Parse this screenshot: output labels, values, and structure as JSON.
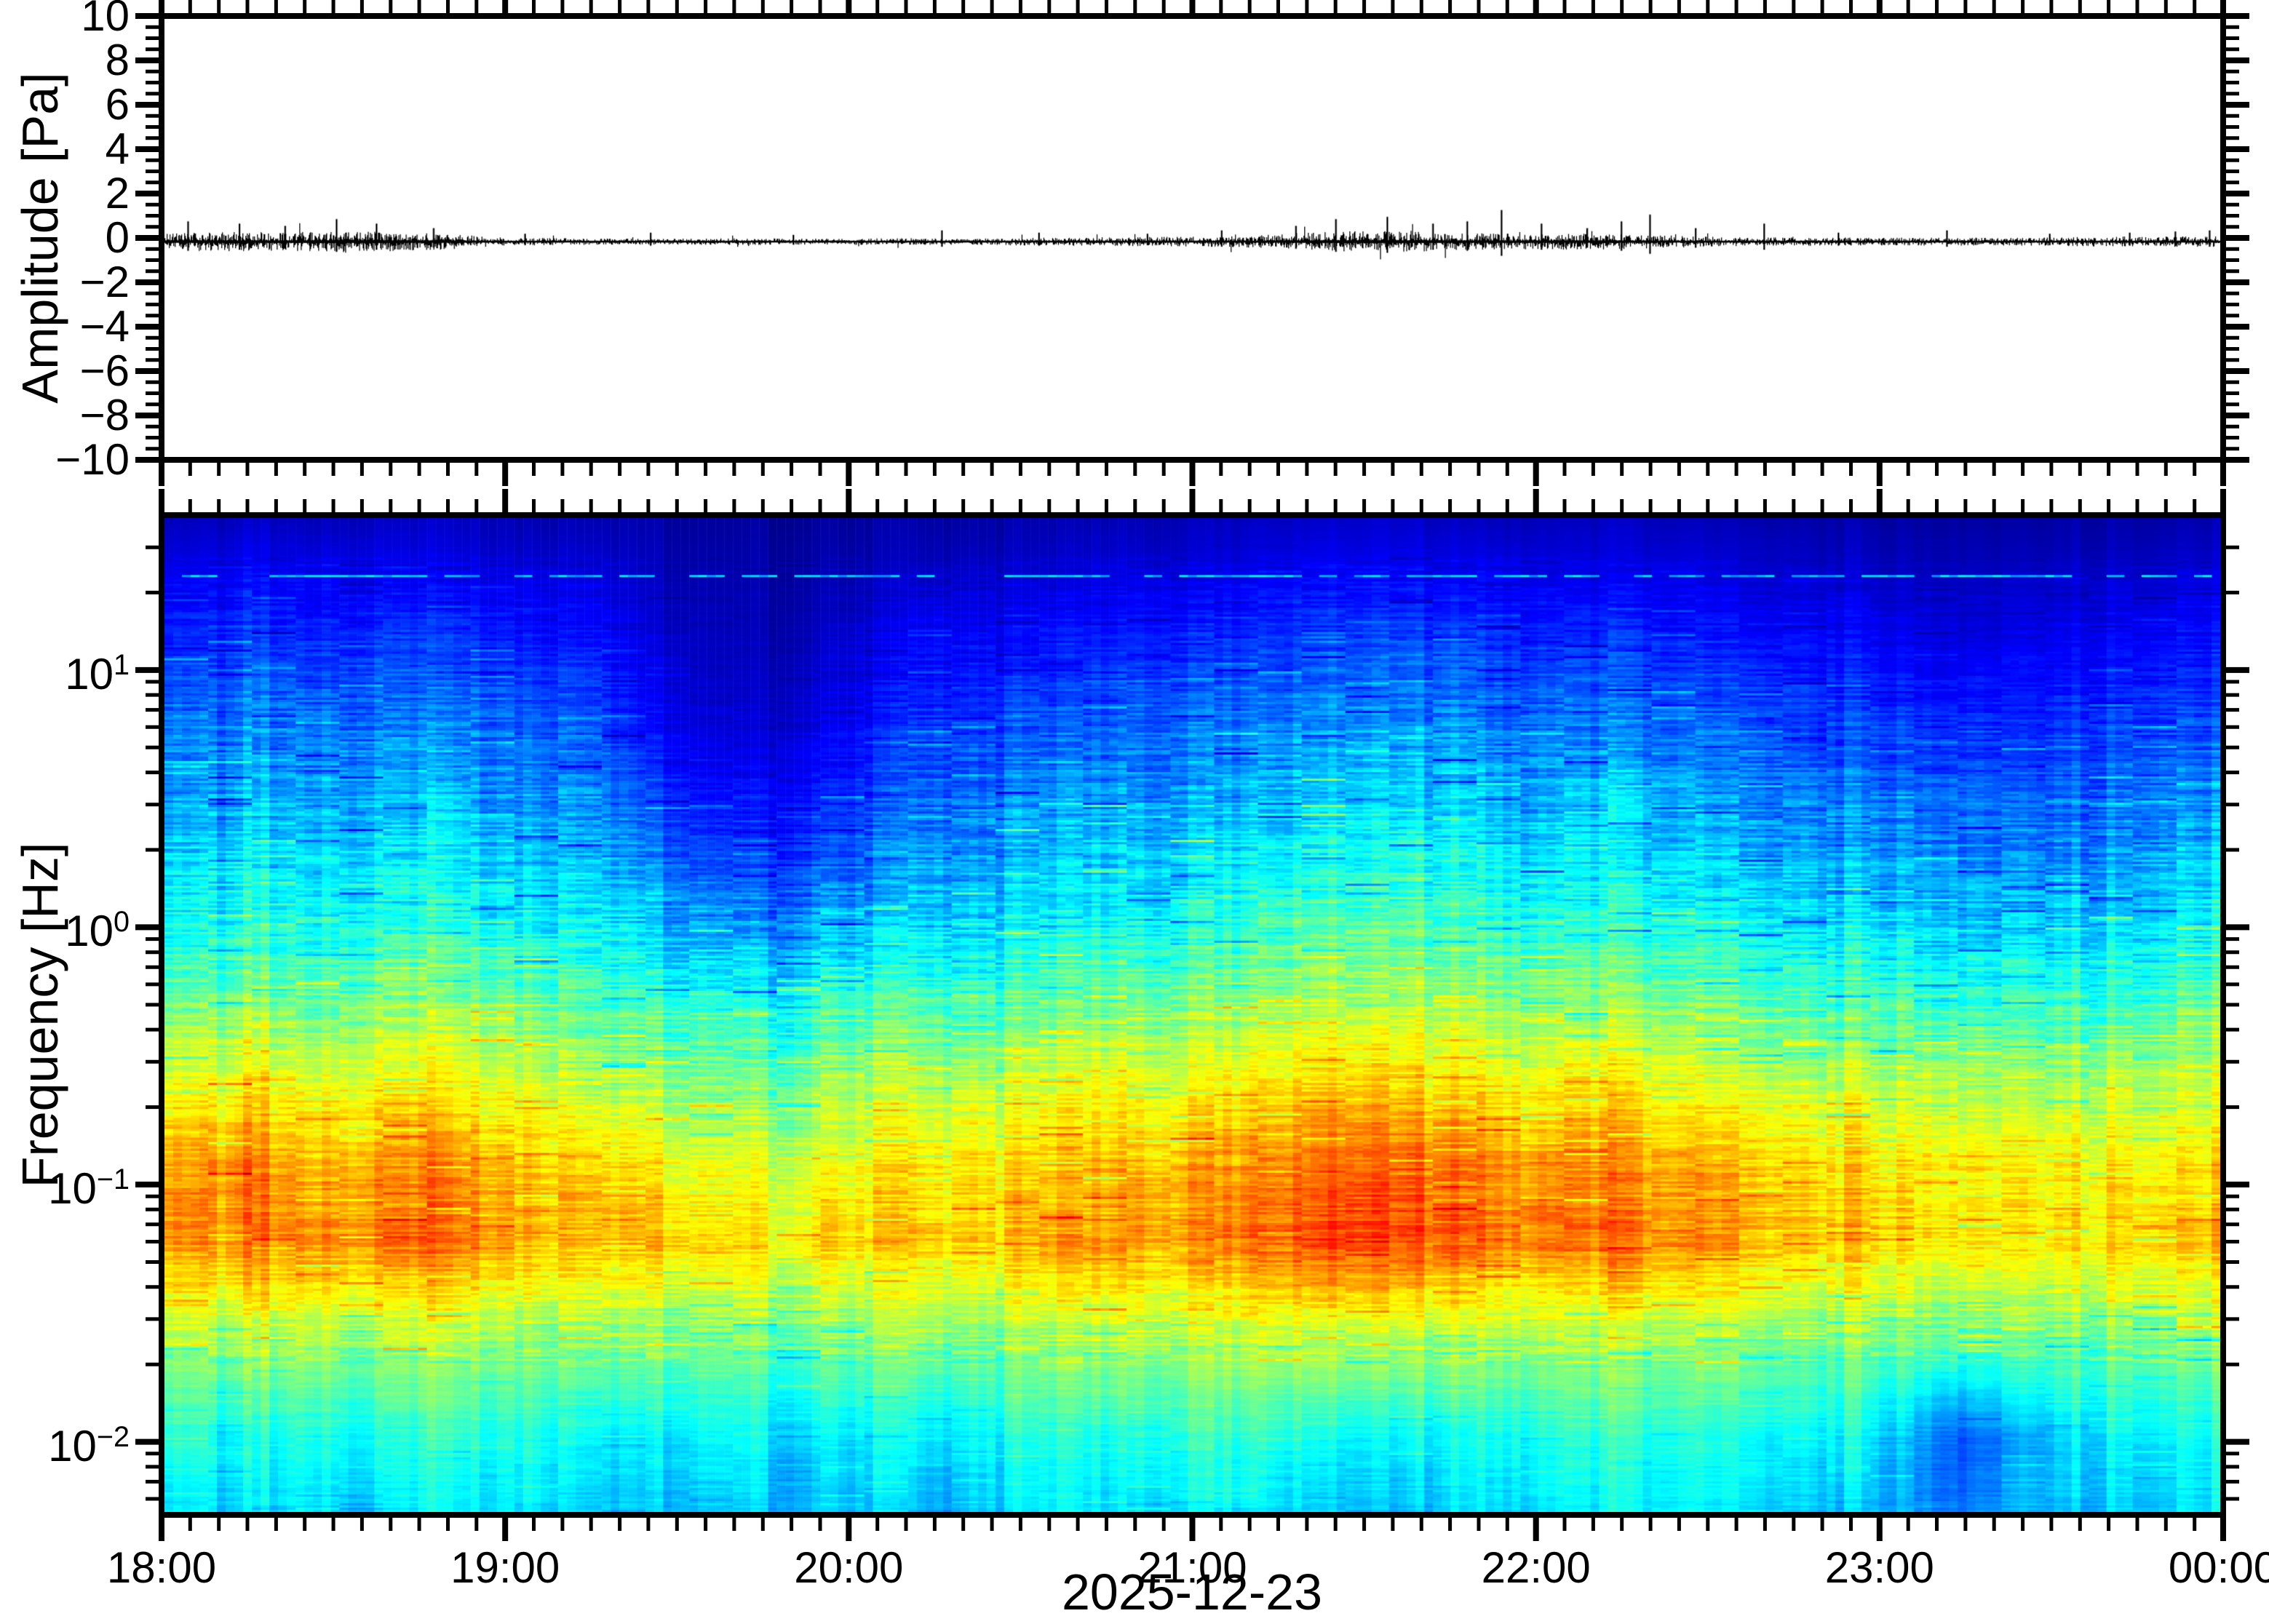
{
  "figure": {
    "background": "#ffffff",
    "x_axis": {
      "tick_labels": [
        "18:00",
        "19:00",
        "20:00",
        "21:00",
        "22:00",
        "23:00",
        "00:00"
      ],
      "minor_tick_minutes": 5,
      "start_minute": 0,
      "end_minute": 360,
      "date_label": "2025-12-23"
    },
    "waveform_panel": {
      "ylabel": "Amplitude [Pa]",
      "ymin": -10,
      "ymax": 10,
      "ytick_values": [
        10,
        8,
        6,
        4,
        2,
        0,
        -2,
        -4,
        -6,
        -8,
        -10
      ],
      "ytick_labels": [
        "10",
        "8",
        "6",
        "4",
        "2",
        "0",
        "−2",
        "−4",
        "−6",
        "−8",
        "−10"
      ],
      "minor_tick_step": 0.5,
      "trace_color": "#000000"
    },
    "spectrogram_panel": {
      "ylabel": "Frequency [Hz]",
      "fmax_hz": 40,
      "fmin_hz": 0.0052,
      "decade_tick_base": "10",
      "decade_tick_exponents": [
        1,
        0,
        -1,
        -2
      ]
    }
  },
  "chart_data": [
    {
      "type": "line",
      "name": "infrasound-waveform",
      "xlabel_unit": "minutes after 18:00",
      "ylabel": "Amplitude [Pa]",
      "ylim": [
        -10,
        10
      ],
      "baseline_pa": 0,
      "envelope_x_step_minutes": 10,
      "envelope_pa": [
        0.22,
        0.26,
        0.24,
        0.28,
        0.25,
        0.2,
        0.1,
        0.09,
        0.08,
        0.08,
        0.09,
        0.08,
        0.08,
        0.09,
        0.08,
        0.1,
        0.11,
        0.12,
        0.13,
        0.16,
        0.24,
        0.28,
        0.26,
        0.22,
        0.2,
        0.22,
        0.18,
        0.13,
        0.11,
        0.11,
        0.1,
        0.11,
        0.1,
        0.11,
        0.13,
        0.14,
        0.15
      ],
      "spikes_minute_pa": [
        [
          4,
          0.9
        ],
        [
          13,
          0.8
        ],
        [
          21,
          0.7
        ],
        [
          30,
          1.0
        ],
        [
          37,
          0.8
        ],
        [
          47,
          0.6
        ],
        [
          63,
          0.35
        ],
        [
          85,
          0.4
        ],
        [
          110,
          0.3
        ],
        [
          136,
          0.5
        ],
        [
          153,
          0.4
        ],
        [
          172,
          0.35
        ],
        [
          185,
          0.5
        ],
        [
          198,
          0.7
        ],
        [
          205,
          1.0
        ],
        [
          214,
          1.1
        ],
        [
          222,
          0.8
        ],
        [
          228,
          0.9
        ],
        [
          234,
          1.4
        ],
        [
          241,
          0.8
        ],
        [
          249,
          0.6
        ],
        [
          255,
          0.9
        ],
        [
          260,
          1.2
        ],
        [
          268,
          0.6
        ],
        [
          280,
          0.8
        ],
        [
          293,
          0.4
        ],
        [
          312,
          0.5
        ],
        [
          330,
          0.35
        ],
        [
          344,
          0.4
        ],
        [
          352,
          0.45
        ],
        [
          358,
          0.5
        ]
      ]
    },
    {
      "type": "heatmap",
      "name": "spectrogram-normalized-power",
      "value_scale": "normalized 0 (low, navy) to 1 (high, red), jet colormap",
      "time_minutes": [
        5,
        15,
        25,
        35,
        45,
        55,
        65,
        75,
        85,
        95,
        105,
        115,
        125,
        135,
        145,
        155,
        165,
        175,
        185,
        195,
        205,
        215,
        225,
        235,
        245,
        255,
        265,
        275,
        285,
        295,
        305,
        315,
        325,
        335,
        345,
        355
      ],
      "frequencies_hz": [
        50,
        30,
        15,
        8,
        4,
        2,
        1,
        0.5,
        0.25,
        0.12,
        0.06,
        0.025,
        0.01,
        0.005
      ],
      "light_line_hz": 24,
      "power": [
        [
          0.04,
          0.09,
          0.16,
          0.22,
          0.28,
          0.34,
          0.4,
          0.5,
          0.62,
          0.72,
          0.74,
          0.55,
          0.42,
          0.36
        ],
        [
          0.04,
          0.1,
          0.17,
          0.23,
          0.29,
          0.35,
          0.41,
          0.51,
          0.63,
          0.74,
          0.76,
          0.54,
          0.38,
          0.33
        ],
        [
          0.04,
          0.09,
          0.16,
          0.22,
          0.28,
          0.34,
          0.41,
          0.5,
          0.61,
          0.71,
          0.75,
          0.56,
          0.42,
          0.37
        ],
        [
          0.04,
          0.1,
          0.17,
          0.23,
          0.3,
          0.36,
          0.42,
          0.52,
          0.63,
          0.73,
          0.77,
          0.55,
          0.4,
          0.34
        ],
        [
          0.04,
          0.09,
          0.16,
          0.22,
          0.29,
          0.35,
          0.41,
          0.51,
          0.62,
          0.74,
          0.76,
          0.54,
          0.41,
          0.35
        ],
        [
          0.04,
          0.08,
          0.15,
          0.21,
          0.27,
          0.33,
          0.4,
          0.49,
          0.6,
          0.7,
          0.73,
          0.53,
          0.4,
          0.34
        ],
        [
          0.03,
          0.07,
          0.13,
          0.19,
          0.25,
          0.31,
          0.38,
          0.48,
          0.58,
          0.67,
          0.7,
          0.52,
          0.4,
          0.35
        ],
        [
          0.03,
          0.07,
          0.13,
          0.18,
          0.24,
          0.3,
          0.37,
          0.44,
          0.54,
          0.66,
          0.69,
          0.51,
          0.36,
          0.32
        ],
        [
          0.03,
          0.05,
          0.08,
          0.11,
          0.16,
          0.23,
          0.32,
          0.43,
          0.52,
          0.63,
          0.68,
          0.5,
          0.34,
          0.3
        ],
        [
          0.02,
          0.04,
          0.06,
          0.08,
          0.12,
          0.19,
          0.29,
          0.42,
          0.51,
          0.6,
          0.67,
          0.51,
          0.38,
          0.33
        ],
        [
          0.02,
          0.04,
          0.05,
          0.07,
          0.11,
          0.17,
          0.27,
          0.4,
          0.49,
          0.59,
          0.66,
          0.49,
          0.37,
          0.32
        ],
        [
          0.02,
          0.04,
          0.06,
          0.09,
          0.13,
          0.2,
          0.3,
          0.43,
          0.52,
          0.6,
          0.67,
          0.5,
          0.36,
          0.31
        ],
        [
          0.03,
          0.05,
          0.09,
          0.13,
          0.18,
          0.25,
          0.33,
          0.45,
          0.56,
          0.65,
          0.68,
          0.52,
          0.38,
          0.33
        ],
        [
          0.03,
          0.06,
          0.12,
          0.17,
          0.23,
          0.29,
          0.36,
          0.46,
          0.57,
          0.66,
          0.69,
          0.53,
          0.36,
          0.3
        ],
        [
          0.03,
          0.06,
          0.12,
          0.17,
          0.23,
          0.29,
          0.36,
          0.46,
          0.56,
          0.66,
          0.68,
          0.52,
          0.39,
          0.34
        ],
        [
          0.03,
          0.06,
          0.13,
          0.18,
          0.24,
          0.3,
          0.37,
          0.47,
          0.58,
          0.67,
          0.7,
          0.53,
          0.4,
          0.35
        ],
        [
          0.03,
          0.07,
          0.13,
          0.19,
          0.25,
          0.31,
          0.38,
          0.48,
          0.59,
          0.68,
          0.71,
          0.54,
          0.38,
          0.32
        ],
        [
          0.04,
          0.07,
          0.14,
          0.2,
          0.26,
          0.32,
          0.39,
          0.49,
          0.6,
          0.69,
          0.72,
          0.54,
          0.41,
          0.35
        ],
        [
          0.04,
          0.08,
          0.15,
          0.21,
          0.27,
          0.34,
          0.41,
          0.51,
          0.62,
          0.71,
          0.74,
          0.55,
          0.42,
          0.36
        ],
        [
          0.04,
          0.09,
          0.16,
          0.22,
          0.29,
          0.36,
          0.43,
          0.53,
          0.64,
          0.74,
          0.77,
          0.56,
          0.4,
          0.34
        ],
        [
          0.05,
          0.1,
          0.18,
          0.25,
          0.32,
          0.39,
          0.46,
          0.56,
          0.67,
          0.79,
          0.83,
          0.57,
          0.38,
          0.32
        ],
        [
          0.05,
          0.1,
          0.18,
          0.25,
          0.32,
          0.39,
          0.46,
          0.55,
          0.66,
          0.78,
          0.81,
          0.56,
          0.36,
          0.3
        ],
        [
          0.04,
          0.09,
          0.17,
          0.24,
          0.31,
          0.38,
          0.45,
          0.54,
          0.65,
          0.76,
          0.79,
          0.55,
          0.38,
          0.33
        ],
        [
          0.04,
          0.09,
          0.16,
          0.22,
          0.29,
          0.36,
          0.43,
          0.53,
          0.64,
          0.74,
          0.77,
          0.55,
          0.4,
          0.35
        ],
        [
          0.04,
          0.08,
          0.15,
          0.22,
          0.28,
          0.35,
          0.42,
          0.52,
          0.63,
          0.73,
          0.76,
          0.54,
          0.41,
          0.36
        ],
        [
          0.04,
          0.08,
          0.15,
          0.21,
          0.28,
          0.34,
          0.41,
          0.51,
          0.62,
          0.72,
          0.75,
          0.54,
          0.4,
          0.35
        ],
        [
          0.04,
          0.08,
          0.14,
          0.2,
          0.27,
          0.33,
          0.4,
          0.5,
          0.61,
          0.71,
          0.74,
          0.53,
          0.41,
          0.36
        ],
        [
          0.03,
          0.07,
          0.13,
          0.19,
          0.25,
          0.31,
          0.38,
          0.48,
          0.59,
          0.69,
          0.72,
          0.53,
          0.4,
          0.35
        ],
        [
          0.03,
          0.07,
          0.13,
          0.18,
          0.24,
          0.3,
          0.37,
          0.47,
          0.58,
          0.68,
          0.71,
          0.52,
          0.39,
          0.34
        ],
        [
          0.03,
          0.06,
          0.12,
          0.17,
          0.23,
          0.29,
          0.36,
          0.46,
          0.57,
          0.66,
          0.69,
          0.51,
          0.38,
          0.33
        ],
        [
          0.02,
          0.05,
          0.1,
          0.15,
          0.21,
          0.27,
          0.34,
          0.44,
          0.55,
          0.64,
          0.66,
          0.49,
          0.3,
          0.28
        ],
        [
          0.02,
          0.05,
          0.09,
          0.14,
          0.2,
          0.26,
          0.33,
          0.43,
          0.54,
          0.63,
          0.65,
          0.48,
          0.2,
          0.24
        ],
        [
          0.02,
          0.05,
          0.1,
          0.14,
          0.2,
          0.26,
          0.33,
          0.43,
          0.54,
          0.63,
          0.65,
          0.49,
          0.28,
          0.3
        ],
        [
          0.03,
          0.06,
          0.11,
          0.16,
          0.22,
          0.28,
          0.35,
          0.45,
          0.55,
          0.64,
          0.67,
          0.5,
          0.36,
          0.33
        ],
        [
          0.03,
          0.06,
          0.12,
          0.17,
          0.23,
          0.29,
          0.36,
          0.46,
          0.56,
          0.65,
          0.68,
          0.51,
          0.38,
          0.34
        ],
        [
          0.03,
          0.07,
          0.13,
          0.18,
          0.25,
          0.31,
          0.38,
          0.48,
          0.58,
          0.66,
          0.69,
          0.52,
          0.39,
          0.35
        ]
      ]
    }
  ],
  "colors": {
    "axis": "#000000",
    "trace": "#000000",
    "colormap_name": "jet",
    "jet_anchors": [
      "#000080",
      "#0000ff",
      "#00ffff",
      "#80ff80",
      "#ffff00",
      "#ff8000",
      "#ff0000",
      "#800000"
    ]
  }
}
